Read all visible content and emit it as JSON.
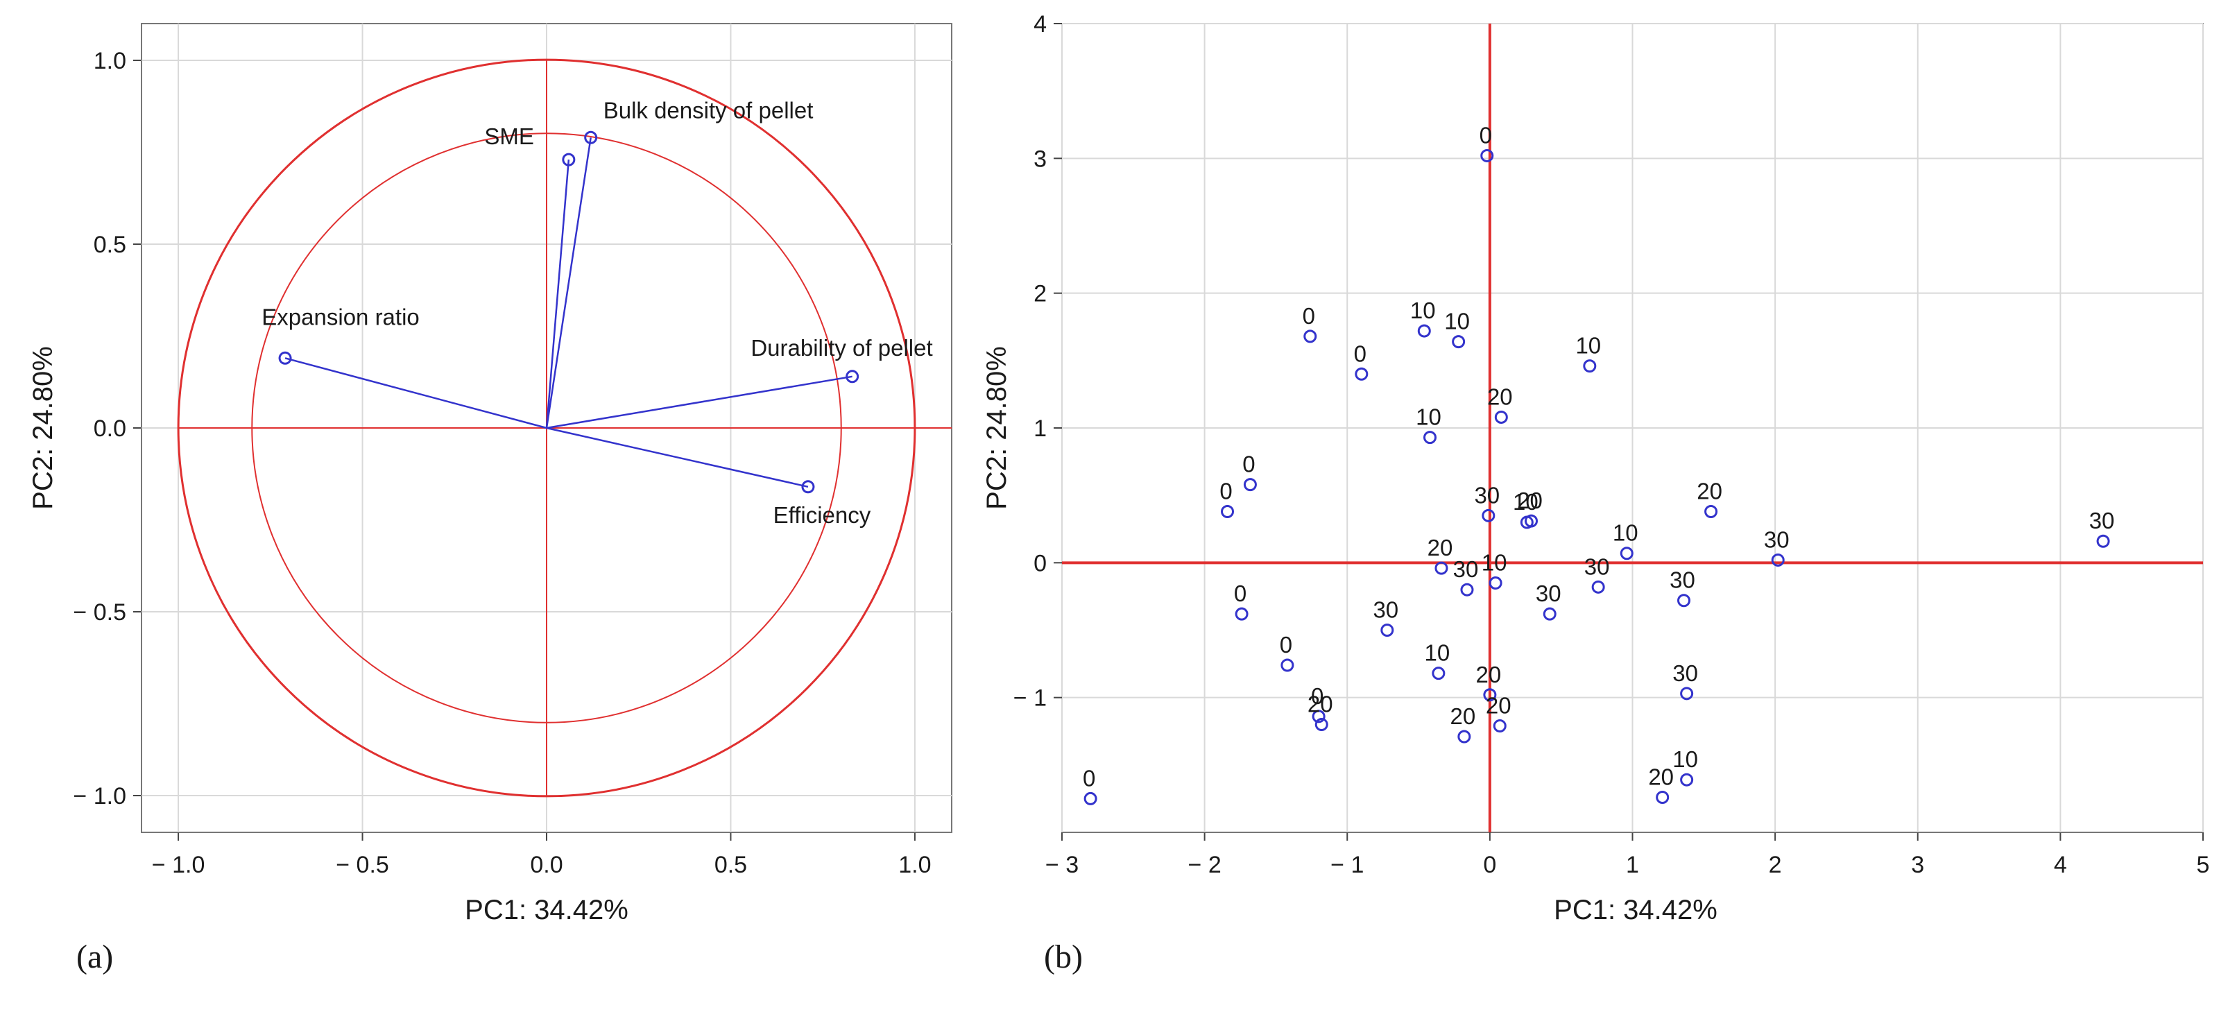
{
  "chart_data": [
    {
      "type": "scatter",
      "subtype": "pca-correlation-circle",
      "panel_label": "(a)",
      "xlabel": "PC1: 34.42%",
      "ylabel": "PC2: 24.80%",
      "xlim": [
        -1.1,
        1.1
      ],
      "ylim": [
        -1.1,
        1.1
      ],
      "xticks": [
        -1.0,
        -0.5,
        0.0,
        0.5,
        1.0
      ],
      "xtick_labels": [
        "− 1.0",
        "− 0.5",
        "0.0",
        "0.5",
        "1.0"
      ],
      "yticks": [
        1.0,
        0.5,
        0.0,
        -0.5,
        -1.0
      ],
      "ytick_labels": [
        "1.0",
        "0.5",
        "0.0",
        "− 0.5",
        "− 1.0"
      ],
      "grid": true,
      "circles": [
        1.0,
        0.8
      ],
      "vectors": [
        {
          "name": "SME",
          "x": 0.06,
          "y": 0.73
        },
        {
          "name": "Bulk density of pellet",
          "x": 0.12,
          "y": 0.79
        },
        {
          "name": "Expansion ratio",
          "x": -0.71,
          "y": 0.19
        },
        {
          "name": "Durability of pellet",
          "x": 0.83,
          "y": 0.14
        },
        {
          "name": "Efficiency",
          "x": 0.71,
          "y": -0.16
        }
      ],
      "colors": {
        "vector": "#3333cc",
        "circle": "#e03030",
        "axis": "#e03030"
      }
    },
    {
      "type": "scatter",
      "panel_label": "(b)",
      "xlabel": "PC1: 34.42%",
      "ylabel": "PC2: 24.80%",
      "xlim": [
        -3,
        5
      ],
      "ylim": [
        -2,
        4
      ],
      "xticks": [
        -3,
        -2,
        -1,
        0,
        1,
        2,
        3,
        4,
        5
      ],
      "xtick_labels": [
        "− 3",
        "− 2",
        "− 1",
        "0",
        "1",
        "2",
        "3",
        "4",
        "5"
      ],
      "yticks": [
        4,
        3,
        2,
        1,
        0,
        -1
      ],
      "ytick_labels": [
        "4",
        "3",
        "2",
        "1",
        "0",
        "− 1"
      ],
      "grid": true,
      "points": [
        {
          "label": "0",
          "x": -0.02,
          "y": 3.02
        },
        {
          "label": "0",
          "x": -1.26,
          "y": 1.68
        },
        {
          "label": "0",
          "x": -0.9,
          "y": 1.4
        },
        {
          "label": "10",
          "x": -0.46,
          "y": 1.72
        },
        {
          "label": "10",
          "x": -0.22,
          "y": 1.64
        },
        {
          "label": "10",
          "x": 0.7,
          "y": 1.46
        },
        {
          "label": "20",
          "x": 0.08,
          "y": 1.08
        },
        {
          "label": "10",
          "x": -0.42,
          "y": 0.93
        },
        {
          "label": "0",
          "x": -1.68,
          "y": 0.58
        },
        {
          "label": "0",
          "x": -1.84,
          "y": 0.38
        },
        {
          "label": "30",
          "x": -0.01,
          "y": 0.35
        },
        {
          "label": "10",
          "x": 0.26,
          "y": 0.3
        },
        {
          "label": "20",
          "x": 0.29,
          "y": 0.31
        },
        {
          "label": "20",
          "x": 1.55,
          "y": 0.38
        },
        {
          "label": "10",
          "x": 0.96,
          "y": 0.07
        },
        {
          "label": "30",
          "x": 2.02,
          "y": 0.02
        },
        {
          "label": "30",
          "x": 4.3,
          "y": 0.16
        },
        {
          "label": "20",
          "x": -0.34,
          "y": -0.04
        },
        {
          "label": "30",
          "x": -0.16,
          "y": -0.2
        },
        {
          "label": "10",
          "x": 0.04,
          "y": -0.15
        },
        {
          "label": "30",
          "x": 0.76,
          "y": -0.18
        },
        {
          "label": "30",
          "x": 1.36,
          "y": -0.28
        },
        {
          "label": "30",
          "x": 0.42,
          "y": -0.38
        },
        {
          "label": "0",
          "x": -1.74,
          "y": -0.38
        },
        {
          "label": "30",
          "x": -0.72,
          "y": -0.5
        },
        {
          "label": "0",
          "x": -1.42,
          "y": -0.76
        },
        {
          "label": "10",
          "x": -0.36,
          "y": -0.82
        },
        {
          "label": "30",
          "x": 1.38,
          "y": -0.97
        },
        {
          "label": "20",
          "x": 0.0,
          "y": -0.98
        },
        {
          "label": "0",
          "x": -1.2,
          "y": -1.14
        },
        {
          "label": "20",
          "x": -1.18,
          "y": -1.2
        },
        {
          "label": "20",
          "x": 0.07,
          "y": -1.21
        },
        {
          "label": "20",
          "x": -0.18,
          "y": -1.29
        },
        {
          "label": "10",
          "x": 1.38,
          "y": -1.61
        },
        {
          "label": "20",
          "x": 1.21,
          "y": -1.74
        },
        {
          "label": "0",
          "x": -2.8,
          "y": -1.75
        }
      ],
      "colors": {
        "point": "#3333cc",
        "axis": "#e03030"
      }
    }
  ]
}
